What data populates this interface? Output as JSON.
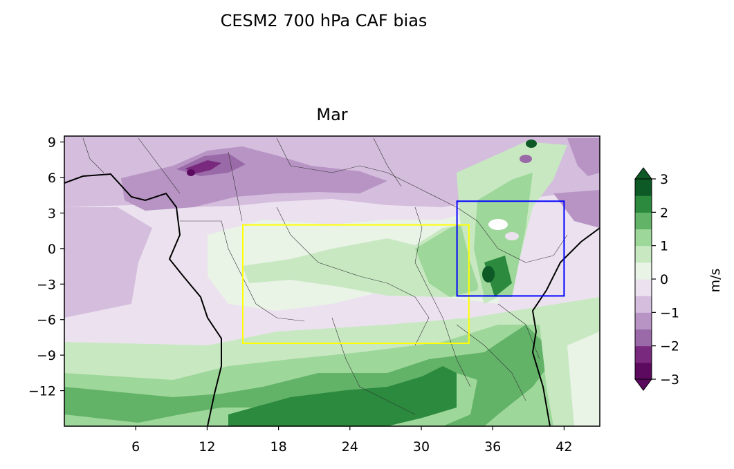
{
  "figure": {
    "title": "CESM2 700 hPa CAF bias",
    "subtitle": "Mar"
  },
  "chart_data": {
    "type": "heatmap",
    "x_ticks": [
      6,
      12,
      18,
      24,
      30,
      36,
      42
    ],
    "y_ticks": [
      9,
      6,
      3,
      0,
      -3,
      -6,
      -9,
      -12
    ],
    "x_tick_labels": [
      "6",
      "12",
      "18",
      "24",
      "30",
      "36",
      "42"
    ],
    "y_tick_labels": [
      "9",
      "6",
      "3",
      "0",
      "−3",
      "−6",
      "−9",
      "−12"
    ],
    "xlim": [
      0,
      45
    ],
    "ylim": [
      -15,
      9.5
    ],
    "colorbar": {
      "label": "m/s",
      "ticks": [
        3,
        2,
        1,
        0,
        -1,
        -2,
        -3
      ],
      "tick_labels": [
        "3",
        "2",
        "1",
        "0",
        "−1",
        "−2",
        "−3"
      ],
      "levels": [
        -3,
        -2.5,
        -2,
        -1.5,
        -1,
        -0.5,
        0,
        0.5,
        1,
        1.5,
        2,
        2.5,
        3
      ],
      "colors": [
        "#5c0a5f",
        "#7a2a7e",
        "#9a6aa8",
        "#b794c4",
        "#d4bddd",
        "#ece2ef",
        "#e9f3e6",
        "#c8e8c2",
        "#9ed79a",
        "#62b368",
        "#2b8a3e",
        "#0d5a27"
      ]
    },
    "regions": [
      {
        "name": "yellow-box",
        "color": "#ffff00",
        "lon": [
          15,
          34
        ],
        "lat": [
          -8,
          2
        ]
      },
      {
        "name": "blue-box",
        "color": "#0000ff",
        "lon": [
          33,
          42
        ],
        "lat": [
          -4,
          4
        ]
      }
    ]
  }
}
